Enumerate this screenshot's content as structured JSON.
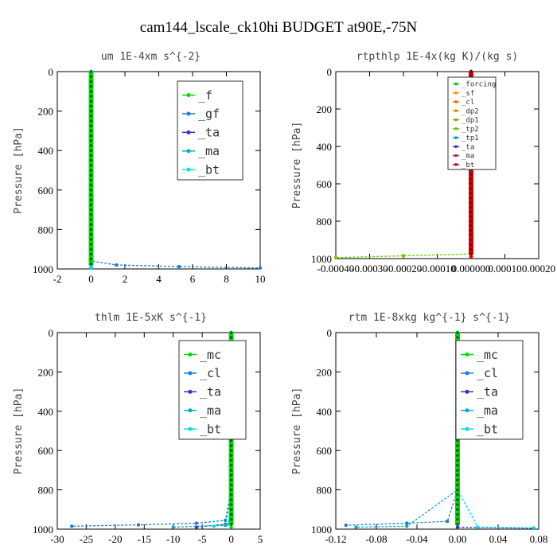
{
  "figure_title": "cam144_lscale_ck10hi  BUDGET at90E,-75N",
  "chart_data": [
    {
      "type": "line",
      "title": "um  1E-4xm s^{-2}",
      "ylabel": "Pressure [hPa]",
      "xlim": [
        -2,
        10
      ],
      "ylim": [
        1000,
        0
      ],
      "xticks": [
        "-2",
        "0",
        "2",
        "4",
        "6",
        "8",
        "10"
      ],
      "xtick_values": [
        -2,
        0,
        2,
        4,
        6,
        8,
        10
      ],
      "yticks": [
        "0",
        "200",
        "400",
        "600",
        "800",
        "1000"
      ],
      "ytick_values": [
        0,
        200,
        400,
        600,
        800,
        1000
      ],
      "legend_position": "top-right",
      "series": [
        {
          "name": "_f",
          "color": "#00dd00",
          "values": [
            [
              0,
              0
            ],
            [
              0,
              200
            ],
            [
              0,
              400
            ],
            [
              0,
              600
            ],
            [
              0,
              800
            ],
            [
              0,
              950
            ],
            [
              0,
              970
            ],
            [
              0,
              985
            ],
            [
              0,
              995
            ]
          ]
        },
        {
          "name": "_gf",
          "color": "#1a7fd6",
          "values": [
            [
              0,
              0
            ],
            [
              0,
              400
            ],
            [
              0,
              800
            ],
            [
              0,
              960
            ],
            [
              1.5,
              980
            ],
            [
              5.2,
              988
            ],
            [
              10,
              995
            ]
          ]
        },
        {
          "name": "_ta",
          "color": "#3333cc",
          "values": [
            [
              0,
              0
            ],
            [
              0,
              400
            ],
            [
              0,
              800
            ],
            [
              0,
              985
            ],
            [
              0,
              995
            ]
          ]
        },
        {
          "name": "_ma",
          "color": "#00aacc",
          "values": [
            [
              0,
              0
            ],
            [
              0,
              400
            ],
            [
              0,
              800
            ],
            [
              0,
              985
            ],
            [
              0,
              995
            ]
          ]
        },
        {
          "name": "_bt",
          "color": "#00ddee",
          "values": [
            [
              0,
              0
            ],
            [
              0,
              400
            ],
            [
              0,
              800
            ],
            [
              0,
              985
            ],
            [
              0,
              995
            ]
          ]
        }
      ]
    },
    {
      "type": "line",
      "title": "rtpthlp  1E-4x(kg K)/(kg s)",
      "ylabel": "Pressure [hPa]",
      "xlim": [
        -0.0004,
        0.0002
      ],
      "ylim": [
        1000,
        0
      ],
      "xticks": [
        "-0.00040",
        "-0.00030",
        "-0.00020",
        "-0.00010",
        "0.000000",
        "0.00010",
        "0.00020"
      ],
      "xtick_values": [
        -0.0004,
        -0.0003,
        -0.0002,
        -0.0001,
        0,
        0.0001,
        0.0002
      ],
      "yticks": [
        "0",
        "200",
        "400",
        "600",
        "800",
        "1000"
      ],
      "ytick_values": [
        0,
        200,
        400,
        600,
        800,
        1000
      ],
      "legend_position": "top-right",
      "series": [
        {
          "name": "_forcing",
          "color": "#00cc00",
          "values": [
            [
              0,
              0
            ],
            [
              0,
              400
            ],
            [
              0,
              800
            ],
            [
              0,
              990
            ]
          ]
        },
        {
          "name": "_sf",
          "color": "#ff9900",
          "values": [
            [
              0,
              0
            ],
            [
              0,
              400
            ],
            [
              0,
              800
            ],
            [
              0,
              990
            ]
          ]
        },
        {
          "name": "_cl",
          "color": "#ff6600",
          "values": [
            [
              0,
              0
            ],
            [
              0,
              400
            ],
            [
              0,
              800
            ],
            [
              0,
              990
            ]
          ]
        },
        {
          "name": "_dp2",
          "color": "#cc9900",
          "values": [
            [
              0,
              0
            ],
            [
              0,
              400
            ],
            [
              0,
              800
            ],
            [
              0,
              990
            ]
          ]
        },
        {
          "name": "_dp1",
          "color": "#999900",
          "values": [
            [
              0,
              0
            ],
            [
              0,
              400
            ],
            [
              0,
              800
            ],
            [
              0,
              990
            ]
          ]
        },
        {
          "name": "_tp2",
          "color": "#66cc00",
          "values": [
            [
              0,
              0
            ],
            [
              0,
              400
            ],
            [
              0,
              800
            ],
            [
              0,
              975
            ],
            [
              -0.0002,
              985
            ],
            [
              -0.0004,
              995
            ]
          ]
        },
        {
          "name": "_tp1",
          "color": "#0099cc",
          "values": [
            [
              0,
              0
            ],
            [
              0,
              400
            ],
            [
              0,
              800
            ],
            [
              0,
              990
            ]
          ]
        },
        {
          "name": "_ta",
          "color": "#3333cc",
          "values": [
            [
              0,
              0
            ],
            [
              0,
              400
            ],
            [
              0,
              800
            ],
            [
              0,
              990
            ]
          ]
        },
        {
          "name": "_ma",
          "color": "#993333",
          "values": [
            [
              0,
              0
            ],
            [
              0,
              400
            ],
            [
              0,
              800
            ],
            [
              0,
              990
            ]
          ]
        },
        {
          "name": "_bt",
          "color": "#dd0000",
          "values": [
            [
              0,
              0
            ],
            [
              0,
              200
            ],
            [
              0,
              400
            ],
            [
              0,
              600
            ],
            [
              0,
              800
            ],
            [
              0,
              990
            ]
          ]
        }
      ]
    },
    {
      "type": "line",
      "title": "thlm  1E-5xK s^{-1}",
      "ylabel": "Pressure [hPa]",
      "xlim": [
        -30,
        5
      ],
      "ylim": [
        1000,
        0
      ],
      "xticks": [
        "-30",
        "-25",
        "-20",
        "-15",
        "-10",
        "-5",
        "0",
        "5"
      ],
      "xtick_values": [
        -30,
        -25,
        -20,
        -15,
        -10,
        -5,
        0,
        5
      ],
      "yticks": [
        "0",
        "200",
        "400",
        "600",
        "800",
        "1000"
      ],
      "ytick_values": [
        0,
        200,
        400,
        600,
        800,
        1000
      ],
      "legend_position": "top-right",
      "series": [
        {
          "name": "_mc",
          "color": "#00dd00",
          "values": [
            [
              0,
              0
            ],
            [
              0,
              200
            ],
            [
              0,
              400
            ],
            [
              0,
              600
            ],
            [
              0,
              800
            ],
            [
              0,
              950
            ],
            [
              0,
              990
            ]
          ]
        },
        {
          "name": "_cl",
          "color": "#1a7fd6",
          "values": [
            [
              0,
              0
            ],
            [
              0,
              400
            ],
            [
              0,
              800
            ],
            [
              -1,
              955
            ],
            [
              -6,
              970
            ],
            [
              -16,
              978
            ],
            [
              -27.5,
              985
            ]
          ]
        },
        {
          "name": "_ta",
          "color": "#3333cc",
          "values": [
            [
              0,
              0
            ],
            [
              0,
              400
            ],
            [
              0,
              800
            ],
            [
              -1,
              975
            ],
            [
              -6,
              990
            ]
          ]
        },
        {
          "name": "_ma",
          "color": "#00aacc",
          "values": [
            [
              0,
              0
            ],
            [
              0,
              400
            ],
            [
              0,
              800
            ],
            [
              -1,
              980
            ],
            [
              -10,
              990
            ]
          ]
        },
        {
          "name": "_bt",
          "color": "#00ddee",
          "values": [
            [
              0,
              0
            ],
            [
              0,
              400
            ],
            [
              0,
              800
            ],
            [
              -0.5,
              975
            ],
            [
              -3,
              985
            ]
          ]
        }
      ]
    },
    {
      "type": "line",
      "title": "rtm  1E-8xkg kg^{-1} s^{-1}",
      "ylabel": "Pressure [hPa]",
      "xlim": [
        -0.12,
        0.08
      ],
      "ylim": [
        1000,
        0
      ],
      "xticks": [
        "-0.12",
        "-0.08",
        "-0.04",
        "0.00",
        "0.04",
        "0.08"
      ],
      "xtick_values": [
        -0.12,
        -0.08,
        -0.04,
        0,
        0.04,
        0.08
      ],
      "yticks": [
        "0",
        "200",
        "400",
        "600",
        "800",
        "1000"
      ],
      "ytick_values": [
        0,
        200,
        400,
        600,
        800,
        1000
      ],
      "legend_position": "top-right",
      "series": [
        {
          "name": "_mc",
          "color": "#00dd00",
          "values": [
            [
              0,
              0
            ],
            [
              0,
              200
            ],
            [
              0,
              400
            ],
            [
              0,
              600
            ],
            [
              0,
              800
            ],
            [
              0,
              950
            ],
            [
              0,
              990
            ]
          ]
        },
        {
          "name": "_cl",
          "color": "#1a7fd6",
          "values": [
            [
              0,
              0
            ],
            [
              0,
              400
            ],
            [
              0,
              800
            ],
            [
              -0.01,
              960
            ],
            [
              -0.05,
              970
            ],
            [
              -0.11,
              980
            ]
          ]
        },
        {
          "name": "_ta",
          "color": "#3333cc",
          "values": [
            [
              0,
              0
            ],
            [
              0,
              400
            ],
            [
              0,
              800
            ],
            [
              0,
              990
            ],
            [
              0.075,
              995
            ]
          ]
        },
        {
          "name": "_ma",
          "color": "#00aacc",
          "values": [
            [
              0,
              0
            ],
            [
              0,
              400
            ],
            [
              0,
              800
            ],
            [
              -0.05,
              985
            ],
            [
              -0.1,
              990
            ]
          ]
        },
        {
          "name": "_bt",
          "color": "#00ddee",
          "values": [
            [
              0,
              0
            ],
            [
              0,
              400
            ],
            [
              0,
              800
            ],
            [
              0.02,
              990
            ],
            [
              0.075,
              993
            ]
          ]
        }
      ]
    }
  ]
}
